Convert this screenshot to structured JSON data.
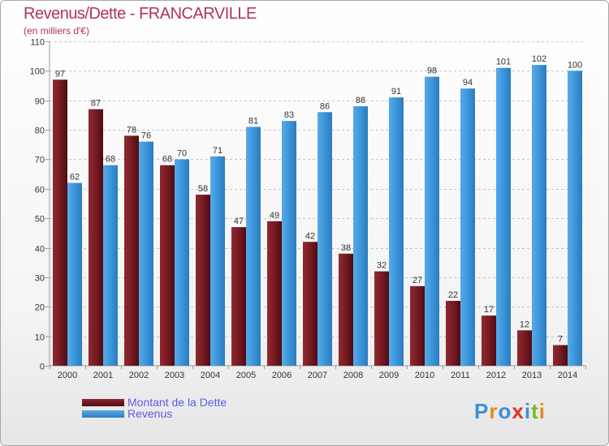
{
  "chart_data": {
    "type": "bar",
    "title": "Revenus/Dette - FRANCARVILLE",
    "subtitle": "(en milliers d'€)",
    "xlabel": "",
    "ylabel": "",
    "ylim": [
      0,
      110
    ],
    "yticks": [
      0,
      10,
      20,
      30,
      40,
      50,
      60,
      70,
      80,
      90,
      100,
      110
    ],
    "grid": true,
    "categories": [
      "2000",
      "2001",
      "2002",
      "2003",
      "2004",
      "2005",
      "2006",
      "2007",
      "2008",
      "2009",
      "2010",
      "2011",
      "2012",
      "2013",
      "2014"
    ],
    "series": [
      {
        "name": "Montant de la Dette",
        "color": "#7a1c24",
        "values": [
          97,
          87,
          78,
          68,
          58,
          47,
          49,
          42,
          38,
          32,
          27,
          22,
          17,
          12,
          7
        ]
      },
      {
        "name": "Revenus",
        "color": "#3e97dc",
        "values": [
          62,
          68,
          76,
          70,
          71,
          81,
          83,
          86,
          88,
          91,
          98,
          94,
          101,
          102,
          100
        ]
      }
    ],
    "legend_position": "bottom-left"
  },
  "logo": {
    "letters": [
      "P",
      "r",
      "o",
      "x",
      "i",
      "t",
      "i"
    ],
    "colors": [
      "#3b8fd8",
      "#e68a1c",
      "#3b8fd8",
      "#e0302a",
      "#3b8fd8",
      "#7bb928",
      "#e68a1c"
    ]
  }
}
